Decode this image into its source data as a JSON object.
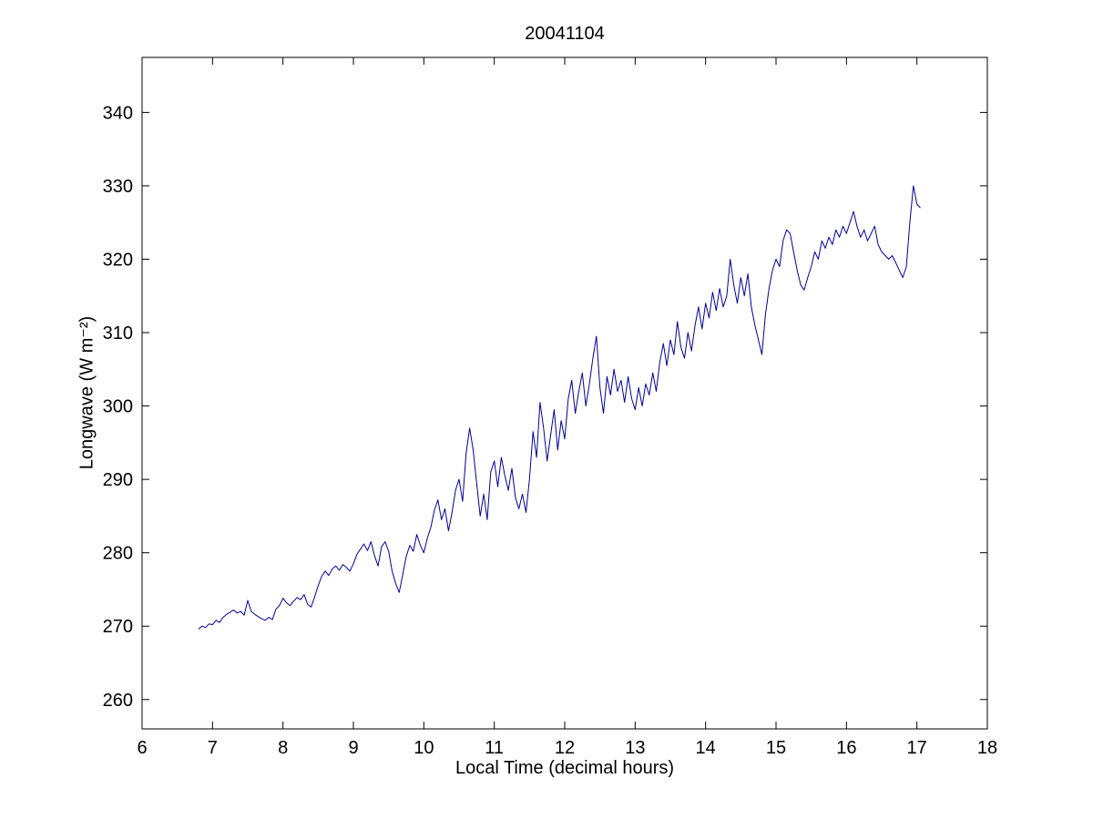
{
  "figure": {
    "background": "#ffffff"
  },
  "chart_data": {
    "type": "line",
    "title": "20041104",
    "xlabel": "Local Time (decimal hours)",
    "ylabel": "Longwave (W m⁻²)",
    "xlim": [
      6,
      18
    ],
    "ylim": [
      256,
      347.5
    ],
    "xticks": [
      6,
      7,
      8,
      9,
      10,
      11,
      12,
      13,
      14,
      15,
      16,
      17,
      18
    ],
    "yticks": [
      260,
      270,
      280,
      290,
      300,
      310,
      320,
      330,
      340
    ],
    "grid": false,
    "legend": null,
    "line_color": "#000099",
    "series": [
      {
        "name": "longwave",
        "points": [
          [
            6.8,
            269.6
          ],
          [
            6.85,
            270.0
          ],
          [
            6.9,
            269.8
          ],
          [
            6.95,
            270.3
          ],
          [
            7.0,
            270.2
          ],
          [
            7.05,
            270.8
          ],
          [
            7.1,
            270.5
          ],
          [
            7.15,
            271.2
          ],
          [
            7.2,
            271.6
          ],
          [
            7.25,
            271.9
          ],
          [
            7.3,
            272.2
          ],
          [
            7.35,
            271.8
          ],
          [
            7.4,
            272.0
          ],
          [
            7.45,
            271.5
          ],
          [
            7.5,
            273.5
          ],
          [
            7.55,
            272.0
          ],
          [
            7.6,
            271.6
          ],
          [
            7.65,
            271.3
          ],
          [
            7.7,
            271.0
          ],
          [
            7.75,
            270.8
          ],
          [
            7.8,
            271.2
          ],
          [
            7.85,
            270.9
          ],
          [
            7.9,
            272.3
          ],
          [
            7.95,
            272.8
          ],
          [
            8.0,
            273.8
          ],
          [
            8.05,
            273.2
          ],
          [
            8.1,
            272.8
          ],
          [
            8.15,
            273.4
          ],
          [
            8.2,
            273.9
          ],
          [
            8.25,
            273.6
          ],
          [
            8.3,
            274.3
          ],
          [
            8.35,
            273.0
          ],
          [
            8.4,
            272.6
          ],
          [
            8.45,
            274.0
          ],
          [
            8.5,
            275.5
          ],
          [
            8.55,
            276.8
          ],
          [
            8.6,
            277.5
          ],
          [
            8.65,
            276.9
          ],
          [
            8.7,
            277.8
          ],
          [
            8.75,
            278.2
          ],
          [
            8.8,
            277.6
          ],
          [
            8.85,
            278.4
          ],
          [
            8.9,
            278.0
          ],
          [
            8.95,
            277.5
          ],
          [
            9.0,
            278.5
          ],
          [
            9.05,
            279.8
          ],
          [
            9.1,
            280.5
          ],
          [
            9.15,
            281.2
          ],
          [
            9.2,
            280.3
          ],
          [
            9.25,
            281.5
          ],
          [
            9.3,
            279.6
          ],
          [
            9.35,
            278.2
          ],
          [
            9.4,
            280.8
          ],
          [
            9.45,
            281.5
          ],
          [
            9.5,
            280.2
          ],
          [
            9.55,
            277.5
          ],
          [
            9.6,
            275.8
          ],
          [
            9.65,
            274.6
          ],
          [
            9.7,
            277.0
          ],
          [
            9.75,
            279.5
          ],
          [
            9.8,
            281.0
          ],
          [
            9.85,
            280.2
          ],
          [
            9.9,
            282.5
          ],
          [
            9.95,
            281.0
          ],
          [
            10.0,
            280.0
          ],
          [
            10.05,
            282.0
          ],
          [
            10.1,
            283.5
          ],
          [
            10.15,
            285.8
          ],
          [
            10.2,
            287.2
          ],
          [
            10.25,
            284.5
          ],
          [
            10.3,
            286.0
          ],
          [
            10.35,
            283.0
          ],
          [
            10.4,
            285.5
          ],
          [
            10.45,
            288.5
          ],
          [
            10.5,
            290.0
          ],
          [
            10.55,
            287.0
          ],
          [
            10.6,
            293.5
          ],
          [
            10.65,
            297.0
          ],
          [
            10.7,
            294.0
          ],
          [
            10.75,
            289.5
          ],
          [
            10.8,
            285.0
          ],
          [
            10.85,
            288.0
          ],
          [
            10.9,
            284.5
          ],
          [
            10.95,
            291.0
          ],
          [
            11.0,
            292.5
          ],
          [
            11.05,
            289.0
          ],
          [
            11.1,
            293.0
          ],
          [
            11.15,
            290.5
          ],
          [
            11.2,
            288.5
          ],
          [
            11.25,
            291.5
          ],
          [
            11.3,
            287.5
          ],
          [
            11.35,
            286.0
          ],
          [
            11.4,
            288.0
          ],
          [
            11.45,
            285.5
          ],
          [
            11.5,
            290.0
          ],
          [
            11.55,
            296.5
          ],
          [
            11.6,
            293.0
          ],
          [
            11.65,
            300.5
          ],
          [
            11.7,
            297.0
          ],
          [
            11.75,
            292.5
          ],
          [
            11.8,
            296.0
          ],
          [
            11.85,
            299.5
          ],
          [
            11.9,
            294.0
          ],
          [
            11.95,
            298.0
          ],
          [
            12.0,
            295.5
          ],
          [
            12.05,
            301.0
          ],
          [
            12.1,
            303.5
          ],
          [
            12.15,
            299.0
          ],
          [
            12.2,
            302.0
          ],
          [
            12.25,
            304.5
          ],
          [
            12.3,
            300.0
          ],
          [
            12.35,
            303.0
          ],
          [
            12.4,
            306.5
          ],
          [
            12.45,
            309.5
          ],
          [
            12.5,
            302.5
          ],
          [
            12.55,
            299.0
          ],
          [
            12.6,
            304.0
          ],
          [
            12.65,
            301.5
          ],
          [
            12.7,
            305.0
          ],
          [
            12.75,
            302.0
          ],
          [
            12.8,
            303.5
          ],
          [
            12.85,
            300.5
          ],
          [
            12.9,
            304.0
          ],
          [
            12.95,
            301.0
          ],
          [
            13.0,
            299.5
          ],
          [
            13.05,
            302.5
          ],
          [
            13.1,
            300.0
          ],
          [
            13.15,
            303.0
          ],
          [
            13.2,
            301.5
          ],
          [
            13.25,
            304.5
          ],
          [
            13.3,
            302.0
          ],
          [
            13.35,
            306.0
          ],
          [
            13.4,
            308.5
          ],
          [
            13.45,
            305.5
          ],
          [
            13.5,
            309.0
          ],
          [
            13.55,
            307.0
          ],
          [
            13.6,
            311.5
          ],
          [
            13.65,
            308.0
          ],
          [
            13.7,
            306.5
          ],
          [
            13.75,
            310.0
          ],
          [
            13.8,
            307.5
          ],
          [
            13.85,
            311.0
          ],
          [
            13.9,
            313.5
          ],
          [
            13.95,
            310.5
          ],
          [
            14.0,
            314.0
          ],
          [
            14.05,
            312.0
          ],
          [
            14.1,
            315.5
          ],
          [
            14.15,
            313.0
          ],
          [
            14.2,
            316.0
          ],
          [
            14.25,
            313.5
          ],
          [
            14.3,
            315.0
          ],
          [
            14.35,
            320.0
          ],
          [
            14.4,
            316.5
          ],
          [
            14.45,
            314.0
          ],
          [
            14.5,
            317.5
          ],
          [
            14.55,
            315.0
          ],
          [
            14.6,
            318.0
          ],
          [
            14.65,
            313.5
          ],
          [
            14.7,
            311.0
          ],
          [
            14.75,
            309.0
          ],
          [
            14.8,
            307.0
          ],
          [
            14.85,
            312.5
          ],
          [
            14.9,
            316.0
          ],
          [
            14.95,
            318.5
          ],
          [
            15.0,
            320.0
          ],
          [
            15.05,
            319.0
          ],
          [
            15.1,
            322.5
          ],
          [
            15.15,
            324.0
          ],
          [
            15.2,
            323.5
          ],
          [
            15.25,
            321.0
          ],
          [
            15.3,
            318.5
          ],
          [
            15.35,
            316.5
          ],
          [
            15.4,
            315.8
          ],
          [
            15.45,
            317.5
          ],
          [
            15.5,
            319.0
          ],
          [
            15.55,
            321.0
          ],
          [
            15.6,
            320.0
          ],
          [
            15.65,
            322.5
          ],
          [
            15.7,
            321.5
          ],
          [
            15.75,
            323.0
          ],
          [
            15.8,
            322.0
          ],
          [
            15.85,
            324.0
          ],
          [
            15.9,
            323.0
          ],
          [
            15.95,
            324.5
          ],
          [
            16.0,
            323.5
          ],
          [
            16.05,
            325.0
          ],
          [
            16.1,
            326.5
          ],
          [
            16.15,
            324.5
          ],
          [
            16.2,
            323.0
          ],
          [
            16.25,
            324.0
          ],
          [
            16.3,
            322.5
          ],
          [
            16.35,
            323.5
          ],
          [
            16.4,
            324.5
          ],
          [
            16.45,
            322.0
          ],
          [
            16.5,
            321.0
          ],
          [
            16.55,
            320.5
          ],
          [
            16.6,
            320.0
          ],
          [
            16.65,
            320.5
          ],
          [
            16.7,
            319.5
          ],
          [
            16.75,
            318.5
          ],
          [
            16.8,
            317.5
          ],
          [
            16.85,
            319.0
          ],
          [
            16.9,
            325.0
          ],
          [
            16.95,
            330.0
          ],
          [
            17.0,
            327.5
          ],
          [
            17.05,
            327.0
          ]
        ]
      }
    ]
  }
}
